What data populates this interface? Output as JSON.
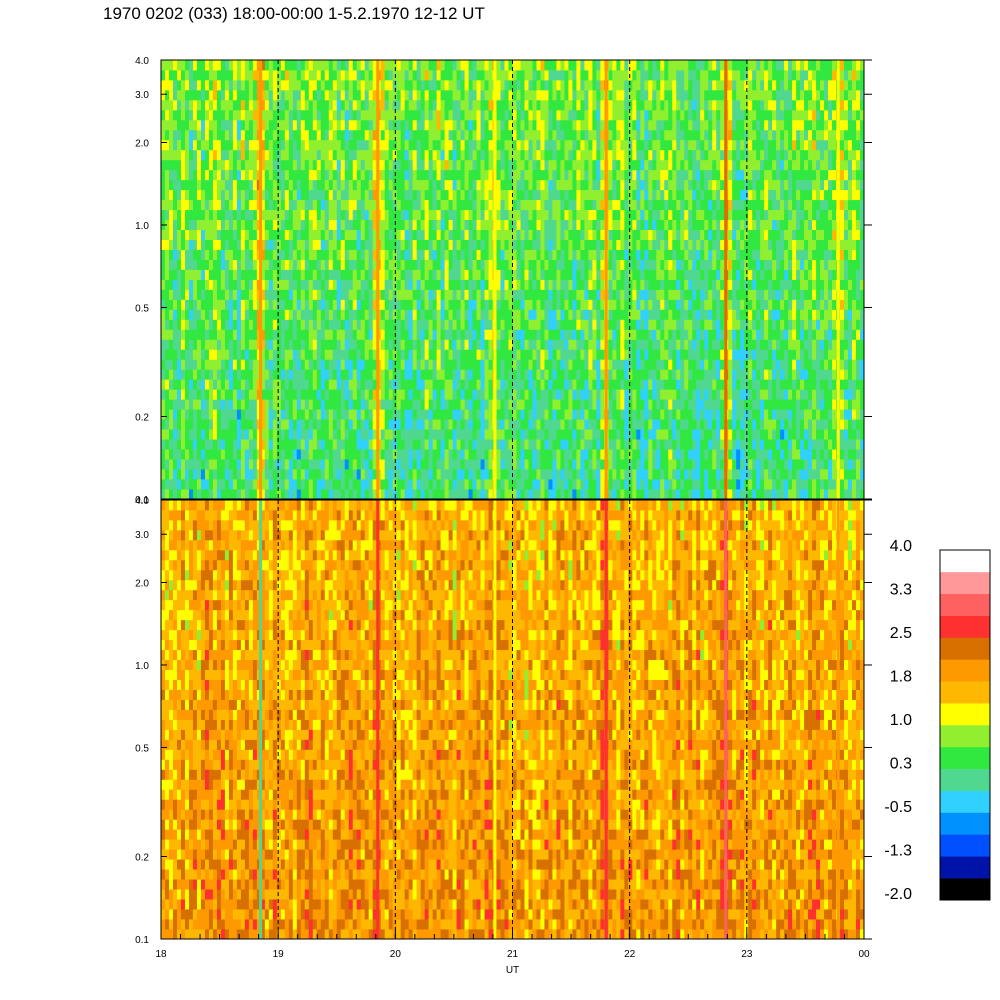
{
  "title": "1970 0202 (033) 18:00-00:00 1-5.2.1970  12-12 UT",
  "chart_data": [
    {
      "type": "heatmap",
      "panel": "upper",
      "x_range": [
        18,
        24
      ],
      "x_tick_labels": [
        "18",
        "19",
        "20",
        "21",
        "22",
        "23",
        "00"
      ],
      "y_scale": "log",
      "y_range": [
        0.1,
        4.0
      ],
      "y_ticks": [
        0.1,
        0.2,
        0.5,
        1.0,
        2.0,
        3.0,
        4.0
      ],
      "y_tick_labels": [
        "0.1",
        "0.2",
        "0.5",
        "1.0",
        "2.0",
        "3.0",
        "4.0"
      ],
      "dashed_vertical_lines_at": [
        19,
        20,
        21,
        22,
        23
      ],
      "background_level": 0.3,
      "bursts": [
        {
          "x": 18.85,
          "level": 1.8
        },
        {
          "x": 19.85,
          "level": 1.8
        },
        {
          "x": 20.85,
          "level": 1.0
        },
        {
          "x": 21.8,
          "level": 1.8
        },
        {
          "x": 22.82,
          "level": 2.2
        },
        {
          "x": 23.78,
          "level": 1.0
        }
      ]
    },
    {
      "type": "heatmap",
      "panel": "lower",
      "x_range": [
        18,
        24
      ],
      "x_tick_labels": [
        "18",
        "19",
        "20",
        "21",
        "22",
        "23",
        "00"
      ],
      "xlabel": "UT",
      "y_scale": "log",
      "y_range": [
        0.1,
        4.0
      ],
      "y_ticks": [
        0.1,
        0.2,
        0.5,
        1.0,
        2.0,
        3.0,
        4.0
      ],
      "y_tick_labels": [
        "0.1",
        "0.2",
        "0.5",
        "1.0",
        "2.0",
        "3.0",
        "4.0"
      ],
      "dashed_vertical_lines_at": [
        19,
        20,
        21,
        22,
        23
      ],
      "background_level": 1.8,
      "bursts": [
        {
          "x": 18.85,
          "level": 0.0
        },
        {
          "x": 19.85,
          "level": 2.5
        },
        {
          "x": 20.85,
          "level": 1.0
        },
        {
          "x": 21.8,
          "level": 2.5
        },
        {
          "x": 22.82,
          "level": 2.9
        },
        {
          "x": 23.78,
          "level": 2.0
        }
      ]
    }
  ],
  "colorbar": {
    "range": [
      -2.0,
      4.0
    ],
    "labels": [
      "4.0",
      "3.3",
      "2.5",
      "1.8",
      "1.0",
      "0.3",
      "-0.5",
      "-1.3",
      "-2.0"
    ],
    "colors_bottom_to_top": [
      "#000000",
      "#0013a8",
      "#0050ff",
      "#0090ff",
      "#30d0ff",
      "#50d890",
      "#30e840",
      "#90f030",
      "#ffff00",
      "#ffb800",
      "#ff9900",
      "#d87000",
      "#ff3030",
      "#ff6060",
      "#ff9898",
      "#ffffff"
    ]
  }
}
